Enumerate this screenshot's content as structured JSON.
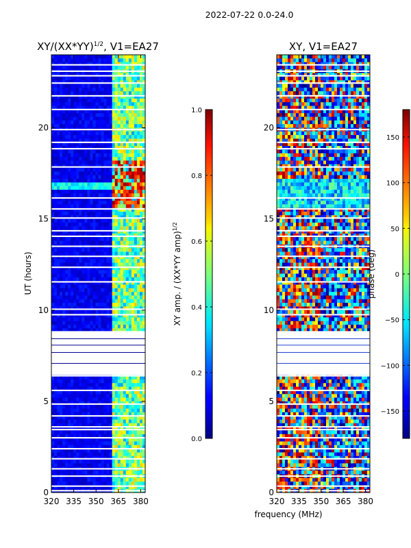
{
  "figure_title": "2022-07-22 0.0-24.0",
  "chart_data": [
    {
      "type": "heatmap",
      "title_main": "XY/(XX*YY)",
      "title_sup": "1/2",
      "title_tail": ", V1=EA27",
      "xlabel": "",
      "ylabel": "UT (hours)",
      "xlim": [
        320,
        383
      ],
      "ylim": [
        0,
        24
      ],
      "xticks": [
        320,
        335,
        350,
        365,
        380
      ],
      "yticks": [
        0,
        5,
        10,
        15,
        20
      ],
      "colorbar": {
        "label_main": "XY amp. / (XX*YY amp)",
        "label_sup": "1/2",
        "range": [
          0.0,
          1.0
        ],
        "ticks": [
          "0.0",
          "0.2",
          "0.4",
          "0.6",
          "0.8",
          "1.0"
        ],
        "tick_values": [
          0.0,
          0.2,
          0.4,
          0.6,
          0.8,
          1.0
        ],
        "colormap": "jet"
      },
      "flagged_hours": [
        0.1,
        0.35,
        0.9,
        1.3,
        1.85,
        2.4,
        3.0,
        3.45,
        3.6,
        4.2,
        4.85,
        5.6,
        6.4,
        6.5,
        6.7,
        6.9,
        7.3,
        7.55,
        7.85,
        8.25,
        8.65,
        8.75,
        9.75,
        10.05,
        11.55,
        12.35,
        12.95,
        13.5,
        14.05,
        14.35,
        15.05,
        15.55,
        16.15,
        17.85,
        18.85,
        19.2,
        19.9,
        21.0,
        21.75,
        22.45,
        22.85,
        23.1,
        23.45
      ],
      "flag_gap_hours": [
        6.45,
        8.85
      ],
      "band_summary": [
        {
          "xmin": 320,
          "xmin_end": 360,
          "typical_amplitude": 0.1
        },
        {
          "xmin": 360,
          "xmin_end": 383,
          "typical_amplitude": 0.45
        },
        {
          "xmin": 360,
          "xmin_end": 383,
          "hours": [
            15.5,
            18.2
          ],
          "typical_amplitude": 0.85
        }
      ]
    },
    {
      "type": "heatmap",
      "title_main": "XY, V1=EA27",
      "title_sup": "",
      "title_tail": "",
      "xlabel": "frequency (MHz)",
      "ylabel": "",
      "xlim": [
        320,
        383
      ],
      "ylim": [
        0,
        24
      ],
      "xticks": [
        320,
        335,
        350,
        365,
        380
      ],
      "yticks": [
        0,
        5,
        10,
        15,
        20
      ],
      "colorbar": {
        "label_main": "phase (deg)",
        "label_sup": "",
        "range": [
          -180,
          180
        ],
        "ticks": [
          "−150",
          "−100",
          "−50",
          "0",
          "50",
          "100",
          "150"
        ],
        "tick_values": [
          -150,
          -100,
          -50,
          0,
          50,
          100,
          150
        ],
        "colormap": "jet"
      },
      "flagged_hours": [
        0.1,
        0.35,
        0.9,
        1.3,
        1.85,
        2.4,
        3.0,
        3.45,
        3.6,
        4.2,
        4.85,
        5.6,
        6.4,
        6.5,
        6.7,
        6.9,
        7.3,
        7.55,
        7.85,
        8.25,
        8.65,
        8.75,
        9.75,
        10.05,
        11.55,
        12.35,
        12.95,
        13.5,
        14.05,
        14.35,
        15.05,
        15.55,
        16.15,
        17.85,
        18.85,
        19.2,
        19.9,
        21.0,
        21.75,
        22.45,
        22.85,
        23.1,
        23.45
      ],
      "flag_gap_hours": [
        6.45,
        8.85
      ],
      "band_summary": [
        {
          "region": "0-6.4 h",
          "pattern": "mixed phase, warm left / cool right"
        },
        {
          "region": "9-24 h",
          "pattern": "mixed phase, warm patches left"
        }
      ]
    }
  ]
}
